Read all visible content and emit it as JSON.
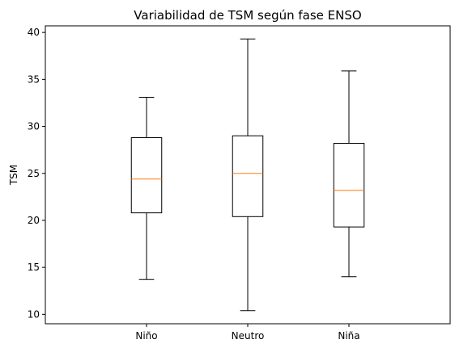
{
  "chart_data": {
    "type": "boxplot",
    "title": "Variabilidad de TSM según fase ENSO",
    "xlabel": "",
    "ylabel": "TSM",
    "ylim": [
      9,
      40.7
    ],
    "yticks": [
      10,
      15,
      20,
      25,
      30,
      35,
      40
    ],
    "grid": false,
    "categories": [
      "Niño",
      "Neutro",
      "Niña"
    ],
    "boxes": [
      {
        "category": "Niño",
        "whisker_low": 13.7,
        "q1": 20.8,
        "median": 24.4,
        "q3": 28.8,
        "whisker_high": 33.1
      },
      {
        "category": "Neutro",
        "whisker_low": 10.4,
        "q1": 20.4,
        "median": 25.0,
        "q3": 29.0,
        "whisker_high": 39.3
      },
      {
        "category": "Niña",
        "whisker_low": 14.0,
        "q1": 19.3,
        "median": 23.2,
        "q3": 28.2,
        "whisker_high": 35.9
      }
    ],
    "colors": {
      "box": "#000000",
      "median": "#ff7f0e",
      "whisker": "#000000"
    }
  }
}
